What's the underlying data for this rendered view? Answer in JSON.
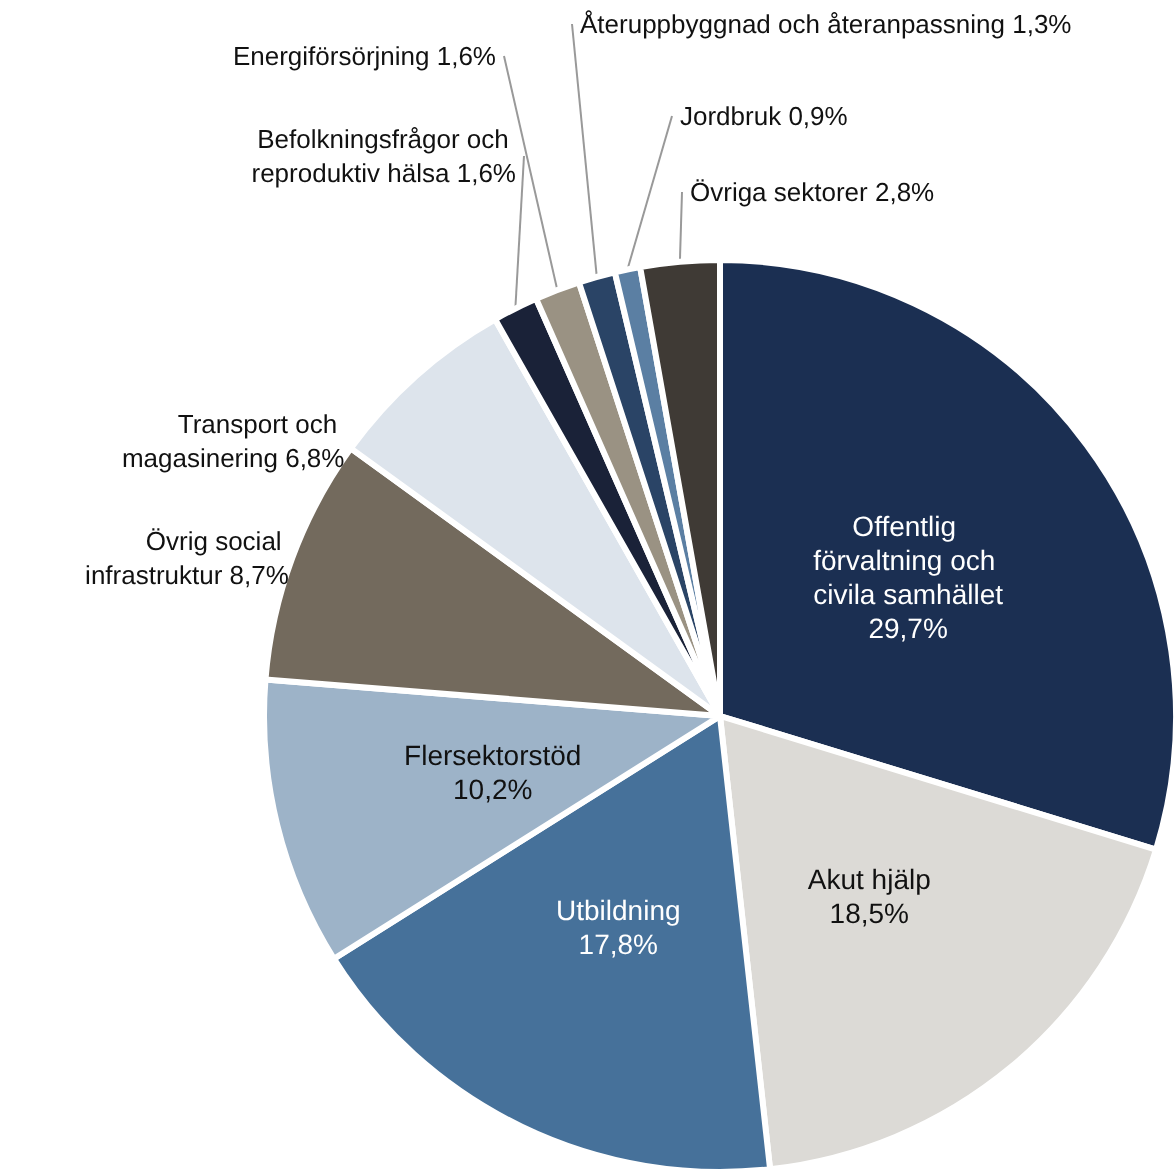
{
  "chart_data": {
    "type": "pie",
    "categories": [
      "Offentlig förvaltning och civila samhället",
      "Akut hjälp",
      "Utbildning",
      "Flersektorstöd",
      "Övrig social infrastruktur",
      "Transport och magasinering",
      "Befolkningsfrågor och reproduktiv hälsa",
      "Energiförsörjning",
      "Återuppbyggnad och återanpassning",
      "Jordbruk",
      "Övriga sektorer"
    ],
    "values": [
      29.7,
      18.5,
      17.8,
      10.2,
      8.7,
      6.8,
      1.6,
      1.6,
      1.3,
      0.9,
      2.8
    ],
    "value_labels": [
      "29,7%",
      "18,5%",
      "17,8%",
      "10,2%",
      "8,7%",
      "6,8%",
      "1,6%",
      "1,6%",
      "1,3%",
      "0,9%",
      "2,8%"
    ],
    "colors": [
      "#1b2f52",
      "#dcdad6",
      "#46719a",
      "#9db3c8",
      "#736a5d",
      "#dde4ec",
      "#1a2238",
      "#9a9283",
      "#2a4466",
      "#5b7fa3",
      "#3f3a35"
    ],
    "legend": false
  }
}
